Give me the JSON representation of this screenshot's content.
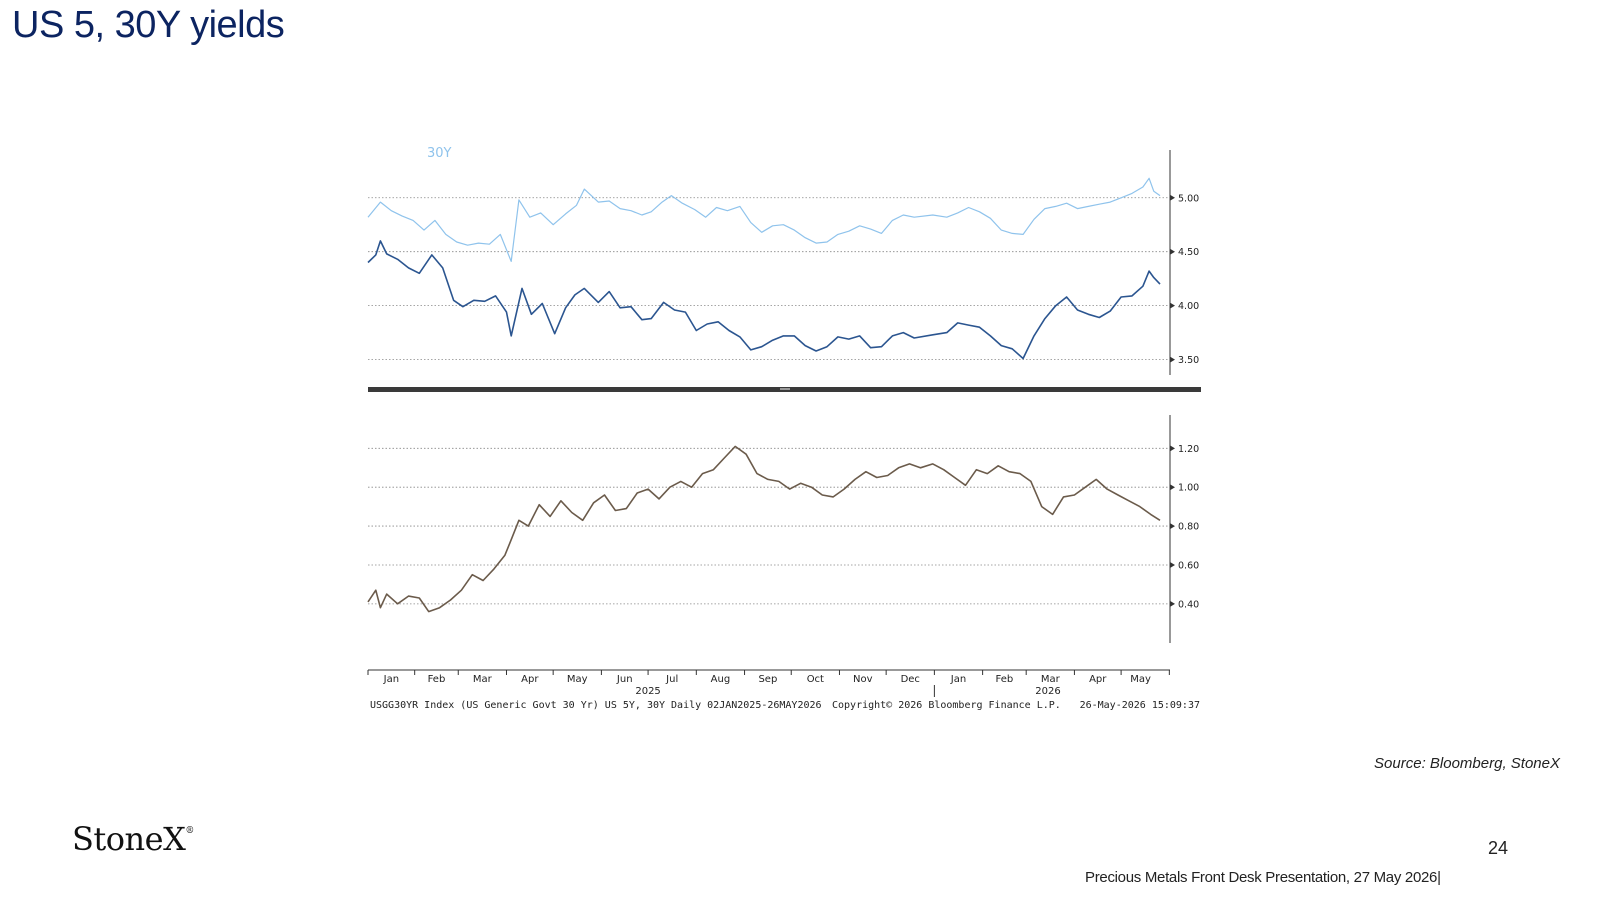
{
  "slide": {
    "title": "US 5, 30Y yields",
    "source": "Source: Bloomberg, StoneX",
    "logo_text": "StoneX",
    "page_number": "24",
    "footer": "Precious Metals Front Desk Presentation, 27 May 2026|"
  },
  "colors": {
    "title": "#0c2461",
    "series_30y": "#8fc3ec",
    "series_5y": "#2b5590",
    "series_spread": "#6b5b4b",
    "divider": "#3a3a3a",
    "grid": "#888888"
  },
  "chart_data": [
    {
      "type": "line",
      "panel": "top",
      "x_start": "2025-01-02",
      "x_end": "2026-05-26",
      "ylim": [
        3.45,
        5.35
      ],
      "yticks": [
        "5.00",
        "4.50",
        "4.00",
        "3.50"
      ],
      "grid": true,
      "series": [
        {
          "name": "30Y",
          "points": [
            [
              "2025-01-02",
              4.82
            ],
            [
              "2025-01-10",
              4.96
            ],
            [
              "2025-01-17",
              4.88
            ],
            [
              "2025-01-24",
              4.83
            ],
            [
              "2025-01-31",
              4.79
            ],
            [
              "2025-02-07",
              4.7
            ],
            [
              "2025-02-14",
              4.79
            ],
            [
              "2025-02-21",
              4.66
            ],
            [
              "2025-02-28",
              4.59
            ],
            [
              "2025-03-07",
              4.56
            ],
            [
              "2025-03-14",
              4.58
            ],
            [
              "2025-03-21",
              4.57
            ],
            [
              "2025-03-28",
              4.66
            ],
            [
              "2025-04-04",
              4.41
            ],
            [
              "2025-04-09",
              4.98
            ],
            [
              "2025-04-16",
              4.82
            ],
            [
              "2025-04-23",
              4.86
            ],
            [
              "2025-05-01",
              4.75
            ],
            [
              "2025-05-09",
              4.85
            ],
            [
              "2025-05-16",
              4.93
            ],
            [
              "2025-05-21",
              5.08
            ],
            [
              "2025-05-30",
              4.96
            ],
            [
              "2025-06-06",
              4.97
            ],
            [
              "2025-06-13",
              4.9
            ],
            [
              "2025-06-20",
              4.88
            ],
            [
              "2025-06-27",
              4.84
            ],
            [
              "2025-07-03",
              4.87
            ],
            [
              "2025-07-10",
              4.96
            ],
            [
              "2025-07-16",
              5.02
            ],
            [
              "2025-07-23",
              4.95
            ],
            [
              "2025-07-31",
              4.89
            ],
            [
              "2025-08-07",
              4.82
            ],
            [
              "2025-08-14",
              4.91
            ],
            [
              "2025-08-21",
              4.88
            ],
            [
              "2025-08-29",
              4.92
            ],
            [
              "2025-09-05",
              4.77
            ],
            [
              "2025-09-12",
              4.68
            ],
            [
              "2025-09-19",
              4.74
            ],
            [
              "2025-09-26",
              4.75
            ],
            [
              "2025-10-03",
              4.7
            ],
            [
              "2025-10-10",
              4.63
            ],
            [
              "2025-10-17",
              4.58
            ],
            [
              "2025-10-24",
              4.59
            ],
            [
              "2025-10-31",
              4.66
            ],
            [
              "2025-11-07",
              4.69
            ],
            [
              "2025-11-14",
              4.74
            ],
            [
              "2025-11-21",
              4.71
            ],
            [
              "2025-11-28",
              4.67
            ],
            [
              "2025-12-05",
              4.79
            ],
            [
              "2025-12-12",
              4.84
            ],
            [
              "2025-12-19",
              4.82
            ],
            [
              "2025-12-31",
              4.84
            ],
            [
              "2026-01-09",
              4.82
            ],
            [
              "2026-01-16",
              4.86
            ],
            [
              "2026-01-23",
              4.91
            ],
            [
              "2026-01-30",
              4.87
            ],
            [
              "2026-02-06",
              4.81
            ],
            [
              "2026-02-13",
              4.7
            ],
            [
              "2026-02-20",
              4.67
            ],
            [
              "2026-02-27",
              4.66
            ],
            [
              "2026-03-06",
              4.8
            ],
            [
              "2026-03-13",
              4.9
            ],
            [
              "2026-03-20",
              4.92
            ],
            [
              "2026-03-27",
              4.95
            ],
            [
              "2026-04-03",
              4.9
            ],
            [
              "2026-04-10",
              4.92
            ],
            [
              "2026-04-17",
              4.94
            ],
            [
              "2026-04-24",
              4.96
            ],
            [
              "2026-05-01",
              5.0
            ],
            [
              "2026-05-08",
              5.04
            ],
            [
              "2026-05-15",
              5.1
            ],
            [
              "2026-05-19",
              5.18
            ],
            [
              "2026-05-22",
              5.06
            ],
            [
              "2026-05-26",
              5.02
            ]
          ]
        },
        {
          "name": "",
          "points": [
            [
              "2025-01-02",
              4.4
            ],
            [
              "2025-01-07",
              4.47
            ],
            [
              "2025-01-10",
              4.6
            ],
            [
              "2025-01-14",
              4.48
            ],
            [
              "2025-01-21",
              4.43
            ],
            [
              "2025-01-28",
              4.35
            ],
            [
              "2025-02-04",
              4.3
            ],
            [
              "2025-02-12",
              4.47
            ],
            [
              "2025-02-19",
              4.35
            ],
            [
              "2025-02-26",
              4.05
            ],
            [
              "2025-03-04",
              3.99
            ],
            [
              "2025-03-11",
              4.05
            ],
            [
              "2025-03-18",
              4.04
            ],
            [
              "2025-03-25",
              4.09
            ],
            [
              "2025-04-01",
              3.94
            ],
            [
              "2025-04-04",
              3.72
            ],
            [
              "2025-04-11",
              4.16
            ],
            [
              "2025-04-17",
              3.92
            ],
            [
              "2025-04-24",
              4.02
            ],
            [
              "2025-05-02",
              3.74
            ],
            [
              "2025-05-09",
              3.98
            ],
            [
              "2025-05-15",
              4.1
            ],
            [
              "2025-05-21",
              4.16
            ],
            [
              "2025-05-30",
              4.03
            ],
            [
              "2025-06-06",
              4.13
            ],
            [
              "2025-06-13",
              3.98
            ],
            [
              "2025-06-20",
              3.99
            ],
            [
              "2025-06-27",
              3.87
            ],
            [
              "2025-07-03",
              3.88
            ],
            [
              "2025-07-11",
              4.03
            ],
            [
              "2025-07-18",
              3.96
            ],
            [
              "2025-07-25",
              3.94
            ],
            [
              "2025-08-01",
              3.77
            ],
            [
              "2025-08-08",
              3.83
            ],
            [
              "2025-08-15",
              3.85
            ],
            [
              "2025-08-22",
              3.77
            ],
            [
              "2025-08-29",
              3.71
            ],
            [
              "2025-09-05",
              3.59
            ],
            [
              "2025-09-12",
              3.62
            ],
            [
              "2025-09-19",
              3.68
            ],
            [
              "2025-09-26",
              3.72
            ],
            [
              "2025-10-03",
              3.72
            ],
            [
              "2025-10-10",
              3.63
            ],
            [
              "2025-10-17",
              3.58
            ],
            [
              "2025-10-24",
              3.62
            ],
            [
              "2025-10-31",
              3.71
            ],
            [
              "2025-11-07",
              3.69
            ],
            [
              "2025-11-14",
              3.72
            ],
            [
              "2025-11-21",
              3.61
            ],
            [
              "2025-11-28",
              3.62
            ],
            [
              "2025-12-05",
              3.72
            ],
            [
              "2025-12-12",
              3.75
            ],
            [
              "2025-12-19",
              3.7
            ],
            [
              "2025-12-31",
              3.73
            ],
            [
              "2026-01-09",
              3.75
            ],
            [
              "2026-01-16",
              3.84
            ],
            [
              "2026-01-23",
              3.82
            ],
            [
              "2026-01-30",
              3.8
            ],
            [
              "2026-02-06",
              3.72
            ],
            [
              "2026-02-13",
              3.63
            ],
            [
              "2026-02-20",
              3.6
            ],
            [
              "2026-02-27",
              3.51
            ],
            [
              "2026-03-06",
              3.72
            ],
            [
              "2026-03-13",
              3.88
            ],
            [
              "2026-03-20",
              4.0
            ],
            [
              "2026-03-27",
              4.08
            ],
            [
              "2026-04-03",
              3.96
            ],
            [
              "2026-04-10",
              3.92
            ],
            [
              "2026-04-17",
              3.89
            ],
            [
              "2026-04-24",
              3.95
            ],
            [
              "2026-05-01",
              4.08
            ],
            [
              "2026-05-08",
              4.09
            ],
            [
              "2026-05-15",
              4.18
            ],
            [
              "2026-05-19",
              4.32
            ],
            [
              "2026-05-22",
              4.26
            ],
            [
              "2026-05-26",
              4.2
            ]
          ]
        }
      ]
    },
    {
      "type": "line",
      "panel": "bottom",
      "x_start": "2025-01-02",
      "x_end": "2026-05-26",
      "ylim": [
        0.25,
        1.32
      ],
      "yticks": [
        "1.20",
        "1.00",
        "0.80",
        "0.60",
        "0.40"
      ],
      "grid": true,
      "xtick_labels": [
        "Jan",
        "Feb",
        "Mar",
        "Apr",
        "May",
        "Jun",
        "Jul",
        "Aug",
        "Sep",
        "Oct",
        "Nov",
        "Dec",
        "Jan",
        "Feb",
        "Mar",
        "Apr",
        "May"
      ],
      "year_labels": [
        "2025",
        "2026"
      ],
      "series": [
        {
          "name": "",
          "points": [
            [
              "2025-01-02",
              0.41
            ],
            [
              "2025-01-07",
              0.47
            ],
            [
              "2025-01-10",
              0.38
            ],
            [
              "2025-01-14",
              0.45
            ],
            [
              "2025-01-21",
              0.4
            ],
            [
              "2025-01-28",
              0.44
            ],
            [
              "2025-02-04",
              0.43
            ],
            [
              "2025-02-10",
              0.36
            ],
            [
              "2025-02-17",
              0.38
            ],
            [
              "2025-02-24",
              0.42
            ],
            [
              "2025-03-03",
              0.47
            ],
            [
              "2025-03-10",
              0.55
            ],
            [
              "2025-03-17",
              0.52
            ],
            [
              "2025-03-24",
              0.58
            ],
            [
              "2025-03-31",
              0.65
            ],
            [
              "2025-04-04",
              0.73
            ],
            [
              "2025-04-09",
              0.83
            ],
            [
              "2025-04-15",
              0.8
            ],
            [
              "2025-04-22",
              0.91
            ],
            [
              "2025-04-29",
              0.85
            ],
            [
              "2025-05-06",
              0.93
            ],
            [
              "2025-05-13",
              0.87
            ],
            [
              "2025-05-20",
              0.83
            ],
            [
              "2025-05-27",
              0.92
            ],
            [
              "2025-06-03",
              0.96
            ],
            [
              "2025-06-10",
              0.88
            ],
            [
              "2025-06-17",
              0.89
            ],
            [
              "2025-06-24",
              0.97
            ],
            [
              "2025-07-01",
              0.99
            ],
            [
              "2025-07-08",
              0.94
            ],
            [
              "2025-07-15",
              1.0
            ],
            [
              "2025-07-22",
              1.03
            ],
            [
              "2025-07-29",
              1.0
            ],
            [
              "2025-08-05",
              1.07
            ],
            [
              "2025-08-12",
              1.09
            ],
            [
              "2025-08-19",
              1.15
            ],
            [
              "2025-08-26",
              1.21
            ],
            [
              "2025-09-02",
              1.17
            ],
            [
              "2025-09-09",
              1.07
            ],
            [
              "2025-09-16",
              1.04
            ],
            [
              "2025-09-23",
              1.03
            ],
            [
              "2025-09-30",
              0.99
            ],
            [
              "2025-10-07",
              1.02
            ],
            [
              "2025-10-14",
              1.0
            ],
            [
              "2025-10-21",
              0.96
            ],
            [
              "2025-10-28",
              0.95
            ],
            [
              "2025-11-04",
              0.99
            ],
            [
              "2025-11-11",
              1.04
            ],
            [
              "2025-11-18",
              1.08
            ],
            [
              "2025-11-25",
              1.05
            ],
            [
              "2025-12-02",
              1.06
            ],
            [
              "2025-12-09",
              1.1
            ],
            [
              "2025-12-16",
              1.12
            ],
            [
              "2025-12-23",
              1.1
            ],
            [
              "2025-12-31",
              1.12
            ],
            [
              "2026-01-07",
              1.09
            ],
            [
              "2026-01-14",
              1.05
            ],
            [
              "2026-01-21",
              1.01
            ],
            [
              "2026-01-28",
              1.09
            ],
            [
              "2026-02-04",
              1.07
            ],
            [
              "2026-02-11",
              1.11
            ],
            [
              "2026-02-18",
              1.08
            ],
            [
              "2026-02-25",
              1.07
            ],
            [
              "2026-03-04",
              1.03
            ],
            [
              "2026-03-11",
              0.9
            ],
            [
              "2026-03-18",
              0.86
            ],
            [
              "2026-03-25",
              0.95
            ],
            [
              "2026-04-01",
              0.96
            ],
            [
              "2026-04-08",
              1.0
            ],
            [
              "2026-04-15",
              1.04
            ],
            [
              "2026-04-22",
              0.99
            ],
            [
              "2026-04-29",
              0.96
            ],
            [
              "2026-05-06",
              0.93
            ],
            [
              "2026-05-13",
              0.9
            ],
            [
              "2026-05-20",
              0.86
            ],
            [
              "2026-05-26",
              0.83
            ]
          ]
        }
      ]
    }
  ],
  "chart_footer": {
    "left": "USGG30YR Index (US Generic Govt 30 Yr) US 5Y, 30Y Daily 02JAN2025-26MAY2026",
    "center": "Copyright© 2026 Bloomberg Finance L.P.",
    "right": "26-May-2026 15:09:37"
  }
}
